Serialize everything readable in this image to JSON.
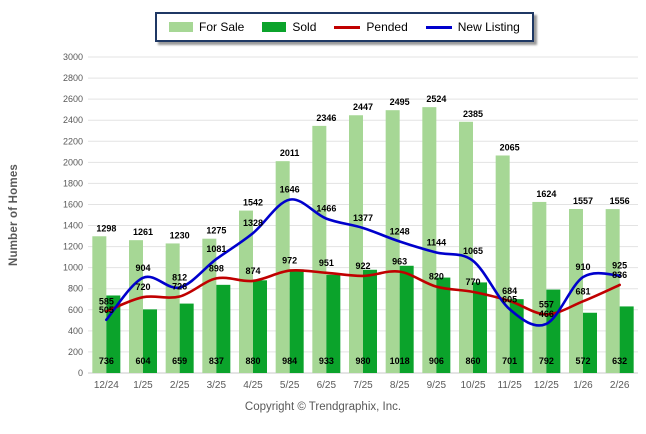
{
  "legend": {
    "items": [
      {
        "label": "For Sale",
        "swatch": "bar",
        "color": "#A6D795"
      },
      {
        "label": "Sold",
        "swatch": "bar",
        "color": "#0BA32B"
      },
      {
        "label": "Pended",
        "swatch": "line",
        "color": "#C00000"
      },
      {
        "label": "New Listing",
        "swatch": "line",
        "color": "#0000CC"
      }
    ]
  },
  "footer": {
    "copyright": "Copyright © Trendgraphix, Inc."
  },
  "colors": {
    "for_sale_bar": "#A6D795",
    "sold_bar": "#0BA32B",
    "pended_line": "#C00000",
    "new_listing_line": "#0000CC",
    "grid": "#E3E3E3",
    "axis_text": "#595959",
    "legend_border": "#1F3864"
  },
  "chart_data": {
    "type": "bar",
    "title": "",
    "xlabel": "",
    "ylabel": "Number of Homes",
    "ylim": [
      0,
      3000
    ],
    "ystep": 200,
    "grid": true,
    "legend_position": "top",
    "categories": [
      "12/24",
      "1/25",
      "2/25",
      "3/25",
      "4/25",
      "5/25",
      "6/25",
      "7/25",
      "8/25",
      "9/25",
      "10/25",
      "11/25",
      "12/25",
      "1/26",
      "2/26"
    ],
    "series": [
      {
        "name": "For Sale",
        "type": "bar",
        "color": "#A6D795",
        "values": [
          1298,
          1261,
          1230,
          1275,
          1542,
          2011,
          2346,
          2447,
          2495,
          2524,
          2385,
          2065,
          1624,
          1557,
          1556
        ]
      },
      {
        "name": "Sold",
        "type": "bar",
        "color": "#0BA32B",
        "values": [
          736,
          604,
          659,
          837,
          880,
          984,
          933,
          980,
          1018,
          906,
          860,
          701,
          792,
          572,
          632
        ]
      },
      {
        "name": "Pended",
        "type": "line",
        "color": "#C00000",
        "values": [
          585,
          720,
          726,
          898,
          874,
          972,
          951,
          922,
          963,
          820,
          770,
          684,
          557,
          681,
          836
        ]
      },
      {
        "name": "New Listing",
        "type": "line",
        "color": "#0000CC",
        "values": [
          505,
          904,
          812,
          1081,
          1328,
          1646,
          1466,
          1377,
          1248,
          1144,
          1065,
          605,
          466,
          910,
          925
        ]
      }
    ]
  }
}
